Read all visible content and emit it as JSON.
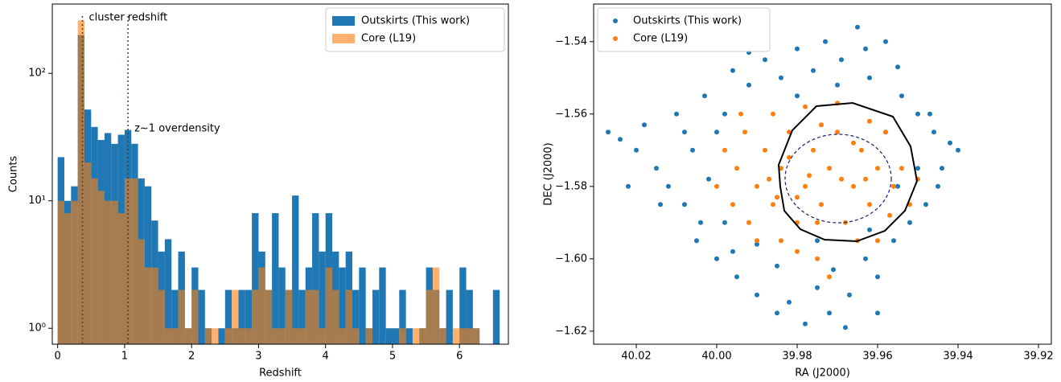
{
  "chart_data": [
    {
      "type": "histogram",
      "xlabel": "Redshift",
      "ylabel": "Counts",
      "bins": [
        0,
        0.1,
        0.2,
        0.3,
        0.4,
        0.5,
        0.6,
        0.7,
        0.8,
        0.9,
        1.0,
        1.1,
        1.2,
        1.3,
        1.4,
        1.5,
        1.6,
        1.7,
        1.8,
        1.9,
        2.0,
        2.1,
        2.2,
        2.3,
        2.4,
        2.5,
        2.6,
        2.7,
        2.8,
        2.9,
        3.0,
        3.1,
        3.2,
        3.3,
        3.4,
        3.5,
        3.6,
        3.7,
        3.8,
        3.9,
        4.0,
        4.1,
        4.2,
        4.3,
        4.4,
        4.5,
        4.6,
        4.7,
        4.8,
        4.9,
        5.0,
        5.1,
        5.2,
        5.3,
        5.4,
        5.5,
        5.6,
        5.7,
        5.8,
        5.9,
        6.0,
        6.1,
        6.2,
        6.3,
        6.4,
        6.5,
        6.6
      ],
      "series": [
        {
          "name": "Outskirts (This work)",
          "color": "#1f77b4",
          "opacity": 1,
          "values": [
            22,
            10,
            13,
            200,
            52,
            38,
            30,
            34,
            28,
            33,
            36,
            28,
            15,
            13,
            7,
            4,
            5,
            2,
            4,
            1,
            3,
            2,
            1,
            0,
            1,
            2,
            1,
            2,
            2,
            8,
            4,
            2,
            8,
            3,
            2,
            11,
            2,
            3,
            8,
            4,
            8,
            4,
            3,
            4,
            2,
            3,
            1,
            2,
            3,
            1,
            1,
            2,
            1,
            0,
            1,
            3,
            2,
            1,
            2,
            0,
            3,
            2,
            1,
            0,
            0,
            2
          ]
        },
        {
          "name": "Core (L19)",
          "color": "#ff7f0e",
          "opacity": 0.6,
          "values": [
            10,
            8,
            10,
            260,
            20,
            15,
            12,
            10,
            10,
            8,
            15,
            15,
            5,
            3,
            3,
            2,
            1,
            1,
            2,
            1,
            2,
            0,
            1,
            1,
            0,
            1,
            2,
            1,
            1,
            2,
            3,
            2,
            1,
            1,
            2,
            1,
            1,
            2,
            2,
            1,
            3,
            2,
            1,
            2,
            1,
            0,
            1,
            0,
            0,
            0,
            0,
            1,
            0,
            1,
            1,
            2,
            3,
            1,
            0,
            1,
            1,
            1,
            1,
            0,
            0,
            0
          ]
        }
      ],
      "xlim": [
        -0.08,
        6.73
      ],
      "xticks": [
        0,
        1,
        2,
        3,
        4,
        5,
        6
      ],
      "ylim": [
        0.75,
        350
      ],
      "ylog": true,
      "yticks": [
        {
          "value": 1,
          "label": "10⁰"
        },
        {
          "value": 10,
          "label": "10¹"
        },
        {
          "value": 100,
          "label": "10²"
        }
      ],
      "legend": "upper right",
      "annotations": [
        {
          "text": "cluster redshift",
          "x": 0.37
        },
        {
          "text": "z~1 overdensity",
          "x": 1.05
        }
      ]
    },
    {
      "type": "scatter",
      "xlabel": "RA (J2000)",
      "ylabel": "DEC (J2000)",
      "series": [
        {
          "name": "Outskirts (This work)",
          "color": "#1f77b4",
          "x": [
            40.027,
            40.024,
            40.02,
            40.018,
            40.015,
            40.012,
            40.01,
            40.008,
            40.006,
            40.004,
            40.003,
            40.0,
            39.998,
            39.996,
            39.995,
            39.992,
            39.99,
            39.988,
            39.985,
            39.984,
            39.982,
            39.98,
            39.978,
            39.976,
            39.975,
            39.973,
            39.971,
            39.969,
            39.967,
            39.965,
            39.963,
            39.962,
            39.96,
            39.958,
            39.956,
            39.954,
            39.952,
            39.95,
            39.948,
            39.946,
            39.944,
            39.942,
            39.94,
            39.955,
            39.963,
            39.99,
            40.005,
            40.002,
            39.998,
            39.96,
            39.972,
            39.985,
            40.014,
            40.022,
            39.95,
            39.955,
            39.947,
            39.97,
            39.98,
            39.992,
            40.008,
            39.958,
            39.962,
            39.996,
            40.0,
            39.975,
            39.945,
            39.968
          ],
          "y": [
            -1.565,
            -1.567,
            -1.57,
            -1.563,
            -1.575,
            -1.58,
            -1.56,
            -1.585,
            -1.57,
            -1.59,
            -1.555,
            -1.6,
            -1.56,
            -1.548,
            -1.605,
            -1.552,
            -1.61,
            -1.545,
            -1.615,
            -1.55,
            -1.612,
            -1.542,
            -1.618,
            -1.548,
            -1.608,
            -1.54,
            -1.603,
            -1.545,
            -1.61,
            -1.536,
            -1.6,
            -1.55,
            -1.605,
            -1.54,
            -1.595,
            -1.555,
            -1.59,
            -1.56,
            -1.585,
            -1.565,
            -1.575,
            -1.568,
            -1.57,
            -1.547,
            -1.542,
            -1.596,
            -1.595,
            -1.578,
            -1.59,
            -1.615,
            -1.615,
            -1.602,
            -1.585,
            -1.58,
            -1.575,
            -1.58,
            -1.56,
            -1.552,
            -1.555,
            -1.543,
            -1.565,
            -1.565,
            -1.592,
            -1.598,
            -1.565,
            -1.595,
            -1.58,
            -1.619
          ]
        },
        {
          "name": "Core (L19)",
          "color": "#ff7f0e",
          "x": [
            39.998,
            39.995,
            39.993,
            39.99,
            39.988,
            39.986,
            39.984,
            39.982,
            39.98,
            39.978,
            39.976,
            39.974,
            39.972,
            39.97,
            39.968,
            39.966,
            39.964,
            39.962,
            39.96,
            39.958,
            39.956,
            39.954,
            39.952,
            39.986,
            39.978,
            39.97,
            39.99,
            39.98,
            39.975,
            39.972,
            39.965,
            39.96,
            40.0,
            39.996,
            39.992,
            39.984,
            39.962,
            39.966,
            39.974,
            39.982,
            39.977,
            39.969,
            39.987,
            39.963,
            39.957,
            39.95,
            39.994,
            39.975,
            39.985,
            39.98
          ],
          "y": [
            -1.57,
            -1.575,
            -1.565,
            -1.58,
            -1.57,
            -1.585,
            -1.575,
            -1.565,
            -1.59,
            -1.58,
            -1.57,
            -1.585,
            -1.575,
            -1.565,
            -1.59,
            -1.58,
            -1.57,
            -1.585,
            -1.575,
            -1.565,
            -1.58,
            -1.575,
            -1.585,
            -1.56,
            -1.558,
            -1.557,
            -1.595,
            -1.598,
            -1.6,
            -1.605,
            -1.595,
            -1.595,
            -1.58,
            -1.585,
            -1.59,
            -1.595,
            -1.562,
            -1.568,
            -1.563,
            -1.572,
            -1.577,
            -1.578,
            -1.578,
            -1.578,
            -1.588,
            -1.578,
            -1.56,
            -1.59,
            -1.583,
            -1.583
          ]
        }
      ],
      "xlim": [
        40.0306,
        39.9168
      ],
      "xticks": [
        40.02,
        {
          "value": 40,
          "label": "40.00"
        },
        39.98,
        39.96,
        39.94,
        39.92
      ],
      "ylim": [
        -1.6236,
        -1.5296
      ],
      "yticks": [
        {
          "value": -1.62,
          "label": "−1.62"
        },
        {
          "value": -1.6,
          "label": "−1.60"
        },
        {
          "value": -1.58,
          "label": "−1.58"
        },
        {
          "value": -1.56,
          "label": "−1.56"
        },
        {
          "value": -1.54,
          "label": "−1.54"
        }
      ],
      "legend": "upper left"
    }
  ]
}
